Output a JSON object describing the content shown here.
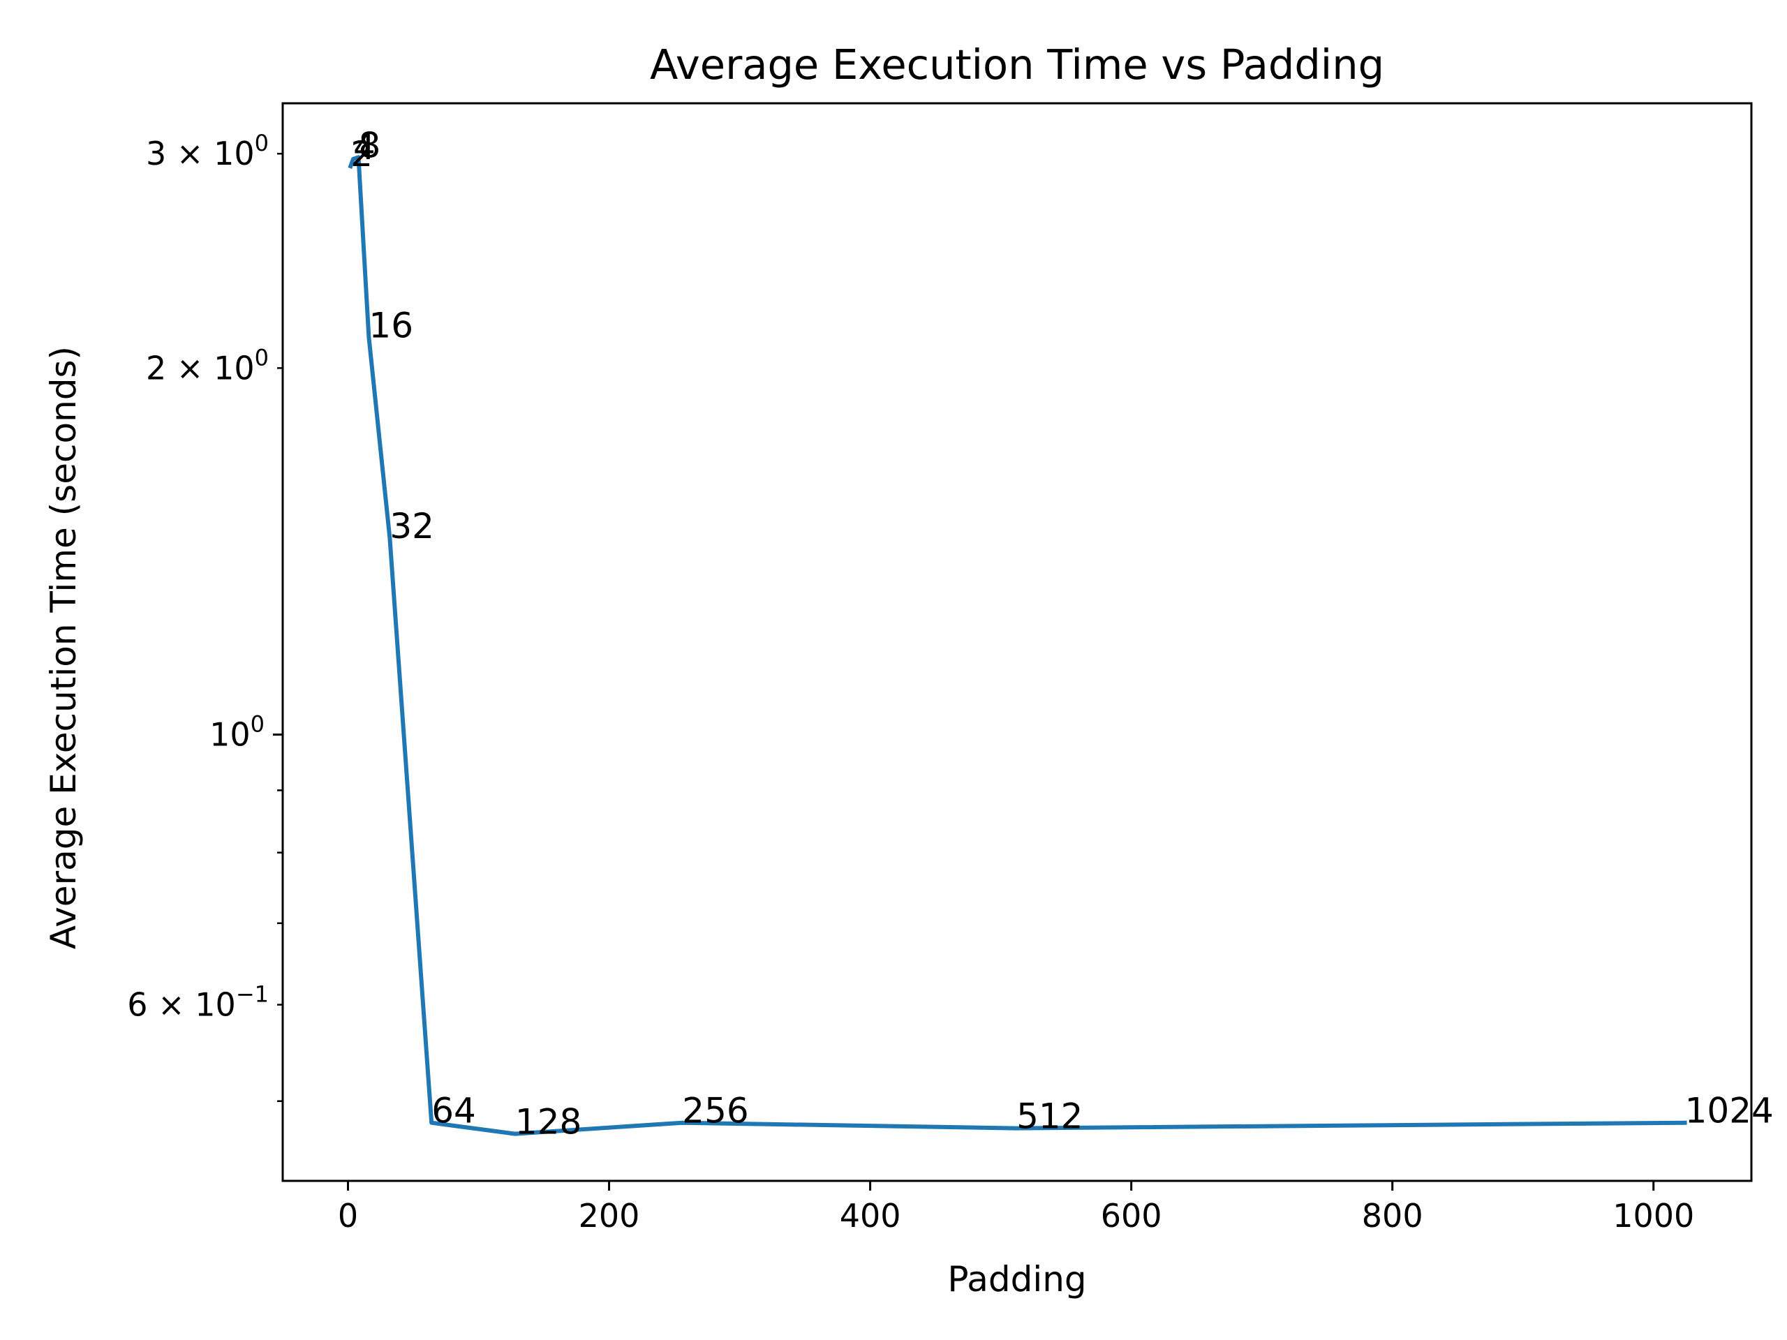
{
  "chart_data": {
    "type": "line",
    "title": "Average Execution Time vs Padding",
    "xlabel": "Padding",
    "ylabel": "Average Execution Time (seconds)",
    "xlim": [
      -50,
      1075
    ],
    "ylim": [
      0.43,
      3.3
    ],
    "y_scale": "log",
    "grid": false,
    "line_color": "#1f77b4",
    "x_ticks": [
      {
        "value": 0,
        "label": "0"
      },
      {
        "value": 200,
        "label": "200"
      },
      {
        "value": 400,
        "label": "400"
      },
      {
        "value": 600,
        "label": "600"
      },
      {
        "value": 800,
        "label": "800"
      },
      {
        "value": 1000,
        "label": "1000"
      }
    ],
    "y_major_ticks": [
      {
        "value": 1,
        "label": "10^0"
      }
    ],
    "y_labeled_minor_ticks": [
      {
        "value": 0.6,
        "label": "6 × 10^-1"
      },
      {
        "value": 2,
        "label": "2 × 10^0"
      },
      {
        "value": 3,
        "label": "3 × 10^0"
      }
    ],
    "y_minor_ticks": [
      0.5,
      0.7,
      0.8,
      0.9
    ],
    "series": [
      {
        "x": [
          2,
          4,
          8,
          16,
          32,
          64,
          128,
          256,
          512,
          1024
        ],
        "y": [
          2.93,
          2.97,
          2.98,
          2.12,
          1.45,
          0.48,
          0.47,
          0.48,
          0.475,
          0.48
        ],
        "point_labels": [
          "2",
          "4",
          "8",
          "16",
          "32",
          "64",
          "128",
          "256",
          "512",
          "1024"
        ]
      }
    ]
  }
}
